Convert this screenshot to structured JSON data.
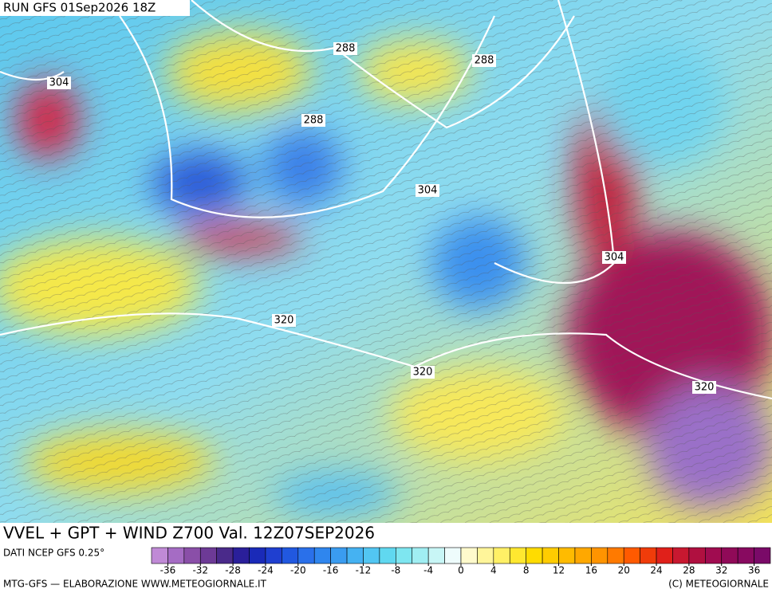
{
  "header": {
    "run": "RUN GFS 01Sep2026 18Z",
    "title": "VVEL + GPT + WIND Z700 Val. 12Z07SEP2026",
    "source": "DATI NCEP GFS 0.25°",
    "credit": "MTG-GFS — ELABORAZIONE WWW.METEOGIORNALE.IT",
    "copyright": "(C) METEOGIORNALE"
  },
  "map": {
    "contour_labels": [
      "304",
      "288",
      "288",
      "288",
      "304",
      "304",
      "320",
      "320",
      "320"
    ]
  },
  "colorbar": {
    "range": [
      -38,
      38
    ],
    "ticks": [
      -36,
      -32,
      -28,
      -24,
      -20,
      -16,
      -12,
      -8,
      -4,
      0,
      4,
      8,
      12,
      16,
      20,
      24,
      28,
      32,
      36
    ],
    "colors": [
      "#c08ad6",
      "#a56cc4",
      "#8a4fa8",
      "#6d3a96",
      "#4a2a8a",
      "#2a1f9a",
      "#1a2ab8",
      "#1f3fd0",
      "#2158e0",
      "#2a70ea",
      "#2f86ee",
      "#3a9cf0",
      "#45b2f2",
      "#52c6f2",
      "#60d8f0",
      "#7ee6f0",
      "#a0eef2",
      "#c8f6f6",
      "#eefcfc",
      "#fffacc",
      "#fff59a",
      "#fff066",
      "#ffe830",
      "#ffdc00",
      "#ffcc00",
      "#ffbb00",
      "#ffa800",
      "#ff9400",
      "#ff7a00",
      "#ff5a00",
      "#f03c0a",
      "#e0201a",
      "#c81830",
      "#b01040",
      "#a00c50",
      "#900a58",
      "#880a60",
      "#7a0a68"
    ]
  }
}
